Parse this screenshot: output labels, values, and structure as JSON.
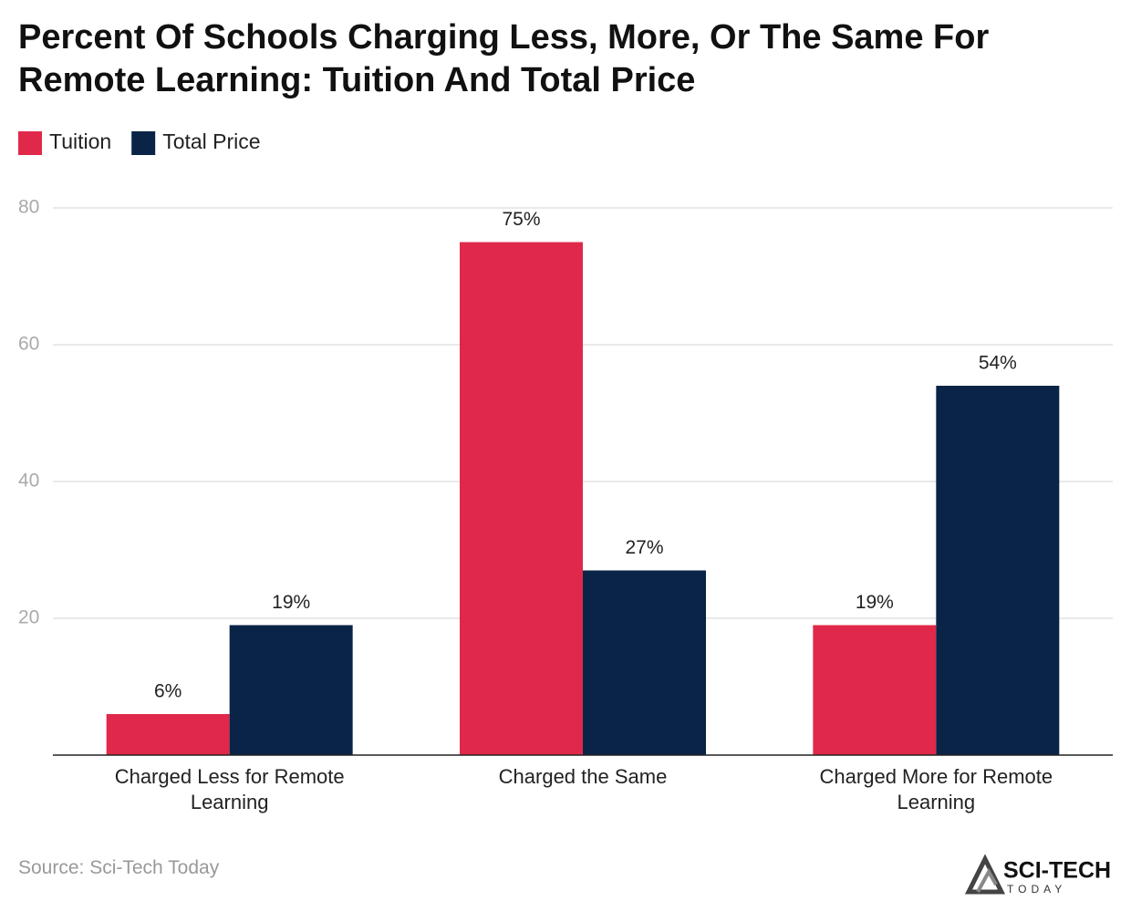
{
  "chart_data": {
    "type": "bar",
    "title": "Percent Of Schools Charging Less, More, Or The Same For Remote Learning: Tuition And Total Price",
    "categories": [
      "Charged Less for Remote Learning",
      "Charged the Same",
      "Charged More for Remote Learning"
    ],
    "series": [
      {
        "name": "Tuition",
        "color": "#e0294a",
        "values": [
          6,
          75,
          19
        ],
        "value_labels": [
          "6%",
          "75%",
          "19%"
        ]
      },
      {
        "name": "Total Price",
        "color": "#0a2447",
        "values": [
          19,
          27,
          54
        ],
        "value_labels": [
          "19%",
          "27%",
          "54%"
        ]
      }
    ],
    "ylim": [
      0,
      80
    ],
    "yticks": [
      20,
      40,
      60,
      80
    ],
    "grid": true,
    "source": "Source: Sci-Tech Today",
    "logo": {
      "name": "SCI-TECH",
      "tagline": "TODAY"
    }
  }
}
